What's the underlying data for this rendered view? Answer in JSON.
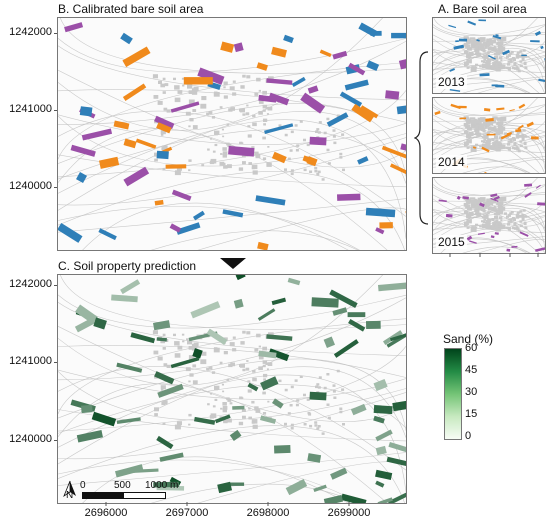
{
  "panels": {
    "b": {
      "title": "B. Calibrated bare soil area"
    },
    "a": {
      "title": "A. Bare soil area",
      "years": [
        "2013",
        "2014",
        "2015"
      ]
    },
    "c": {
      "title": "C. Soil property prediction"
    }
  },
  "axes": {
    "y_ticks_b": [
      "1242000",
      "1241000",
      "1240000"
    ],
    "y_ticks_c": [
      "1242000",
      "1241000",
      "1240000"
    ],
    "x_ticks": [
      "2696000",
      "2697000",
      "2698000",
      "2699000"
    ]
  },
  "legend": {
    "title": "Sand (%)",
    "ticks": [
      "60",
      "45",
      "30",
      "15",
      "0"
    ],
    "color_low": "#f7fcf5",
    "color_high": "#00441b"
  },
  "scale_bar": {
    "north": "N",
    "labels": [
      "0",
      "500",
      "1000 m"
    ]
  },
  "colors": {
    "2013": "#2f7fb8",
    "2014": "#f08a1c",
    "2015": "#9b4fa8",
    "settlement": "#c9c9c9",
    "roads": "#bdbdbd"
  }
}
